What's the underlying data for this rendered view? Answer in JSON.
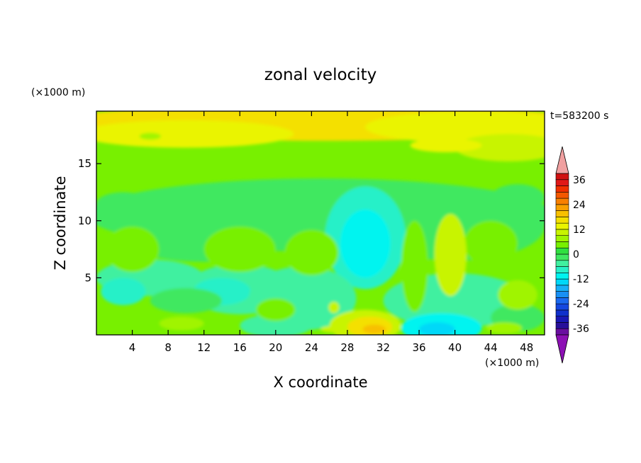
{
  "chart_data": {
    "type": "heatmap",
    "title": "zonal velocity",
    "xlabel": "X coordinate",
    "ylabel": "Z coordinate",
    "x_unit": "(×1000 m)",
    "y_unit": "(×1000 m)",
    "time_label": "t=583200 s",
    "xlim": [
      0,
      50
    ],
    "ylim": [
      0,
      19.6
    ],
    "x_ticks": [
      4,
      8,
      12,
      16,
      20,
      24,
      28,
      32,
      36,
      40,
      44,
      48
    ],
    "y_ticks": [
      5,
      10,
      15
    ],
    "colorbar": {
      "levels": [
        -42,
        -39,
        -36,
        -33,
        -30,
        -27,
        -24,
        -21,
        -18,
        -15,
        -12,
        -9,
        -6,
        -3,
        0,
        3,
        6,
        9,
        12,
        15,
        18,
        21,
        24,
        27,
        30,
        33,
        36,
        39,
        42
      ],
      "tick_values": [
        -36,
        -24,
        -12,
        0,
        12,
        24,
        36
      ],
      "tick_labels": [
        "-36",
        "-24",
        "-12",
        "0",
        "12",
        "24",
        "36"
      ],
      "colors": [
        "#6a0fa0",
        "#28109a",
        "#1a18b4",
        "#1030cc",
        "#1448e0",
        "#1a6af0",
        "#1890f4",
        "#18b0f8",
        "#00d8f8",
        "#00f4f0",
        "#28f0c8",
        "#40f0a0",
        "#40e860",
        "#30e040",
        "#78f000",
        "#a0f400",
        "#c8f400",
        "#eaf400",
        "#f4e000",
        "#f8c000",
        "#f8a000",
        "#f88000",
        "#f45800",
        "#f03000",
        "#e01818",
        "#d01010"
      ],
      "under_color": "#8c10b4",
      "over_color": "#f0a0a0"
    }
  }
}
